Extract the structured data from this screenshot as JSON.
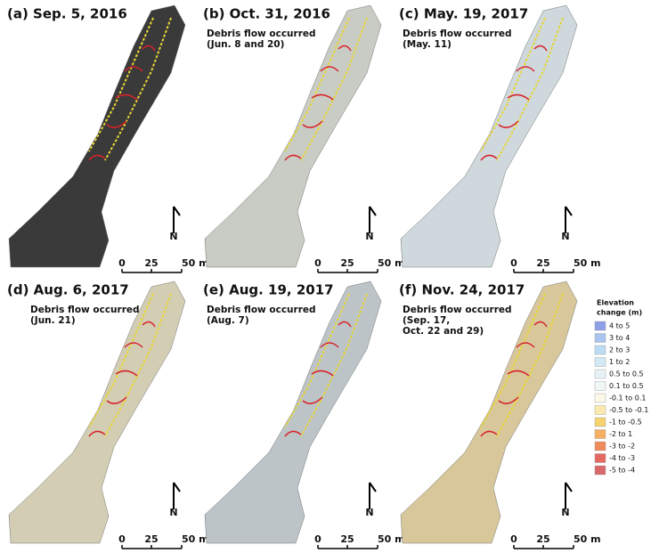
{
  "panels": [
    {
      "title": "(a) Sep. 5, 2016",
      "note": [],
      "scale": [
        "0",
        "25",
        "50 m"
      ],
      "north": "N"
    },
    {
      "title": "(b) Oct. 31, 2016",
      "note": [
        "Debris flow occurred",
        "(Jun. 8 and 20)"
      ],
      "scale": [
        "0",
        "25",
        "50 m"
      ],
      "north": "N"
    },
    {
      "title": "(c) May. 19, 2017",
      "note": [
        "Debris flow occurred",
        "(May. 11)"
      ],
      "scale": [
        "0",
        "25",
        "50 m"
      ],
      "north": "N"
    },
    {
      "title": "(d) Aug. 6, 2017",
      "note": [
        "Debris flow occurred",
        "(Jun. 21)"
      ],
      "scale": [
        "0",
        "25",
        "50 m"
      ],
      "north": "N"
    },
    {
      "title": "(e) Aug. 19, 2017",
      "note": [
        "Debris flow occurred",
        "(Aug. 7)"
      ],
      "scale": [
        "0",
        "25",
        "50 m"
      ],
      "north": "N"
    },
    {
      "title": "(f) Nov. 24, 2017",
      "note": [
        "Debris flow occurred",
        "(Sep. 17,",
        "Oct. 22 and 29)"
      ],
      "scale": [
        "0",
        "25",
        "50 m"
      ],
      "north": "N"
    }
  ],
  "legend": {
    "title": [
      "Elevation",
      "change (m)"
    ],
    "items": [
      {
        "label": "4 to 5",
        "color": "#8f9fe8"
      },
      {
        "label": "3 to 4",
        "color": "#a8c4ef"
      },
      {
        "label": "2 to 3",
        "color": "#bcdcf3"
      },
      {
        "label": "1 to 2",
        "color": "#d3eaf6"
      },
      {
        "label": "0.5 to 0.5",
        "color": "#e6f2f6"
      },
      {
        "label": "0.1 to 0.5",
        "color": "#f1f6f6"
      },
      {
        "label": "-0.1 to 0.1",
        "color": "#fbf8ea"
      },
      {
        "label": "-0.5 to -0.1",
        "color": "#fbeab0"
      },
      {
        "label": "-1 to -0.5",
        "color": "#f6d270"
      },
      {
        "label": "-2 to 1",
        "color": "#f4b060"
      },
      {
        "label": "-3 to -2",
        "color": "#ef8a5a"
      },
      {
        "label": "-4 to -3",
        "color": "#e46860"
      },
      {
        "label": "-5 to -4",
        "color": "#d8686a"
      }
    ]
  }
}
